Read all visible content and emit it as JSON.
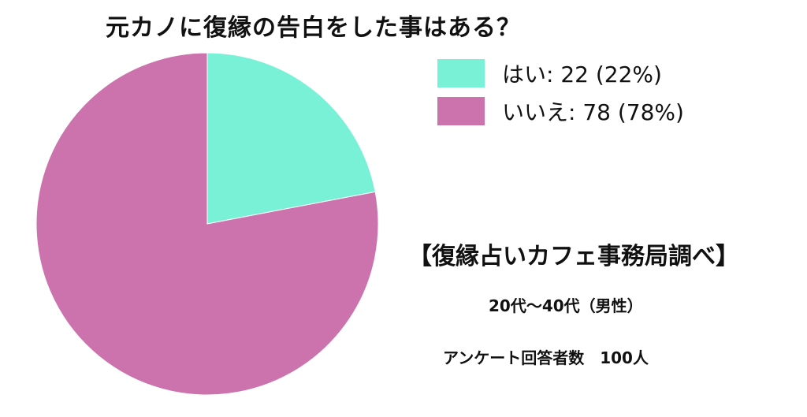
{
  "title": "元カノに復縁の告白をした事はある？",
  "legend": [
    {
      "label": "はい: 22 (22%)",
      "color": "#79F1D6"
    },
    {
      "label": "いいえ: 78 (78%)",
      "color": "#CC72AD"
    }
  ],
  "notes": {
    "source": "【復縁占いカフェ事務局調べ】",
    "age": "20代〜40代（男性）",
    "respondents": "アンケート回答者数　100人"
  },
  "chart_data": {
    "type": "pie",
    "title": "元カノに復縁の告白をした事はある？",
    "legend_position": "top-right",
    "slices": [
      {
        "label": "はい",
        "value": 22,
        "percent": 22,
        "color": "#79F1D6"
      },
      {
        "label": "いいえ",
        "value": 78,
        "percent": 78,
        "color": "#CC72AD"
      }
    ]
  }
}
